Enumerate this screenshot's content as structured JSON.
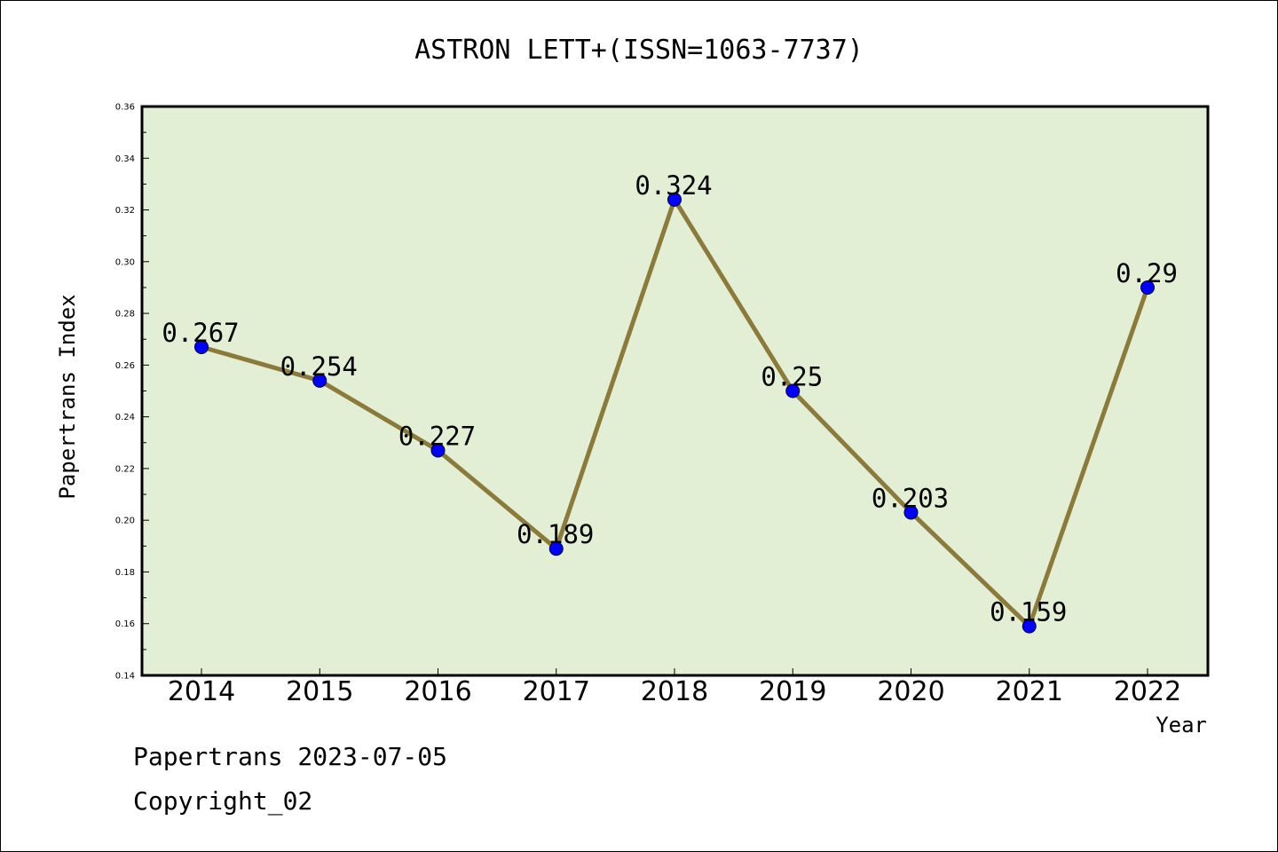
{
  "footer": {
    "line1": "Papertrans 2023-07-05",
    "line2": "Copyright_02"
  },
  "chart_data": {
    "type": "line",
    "title": "ASTRON LETT+(ISSN=1063-7737)",
    "xlabel": "Year",
    "ylabel": "Papertrans Index",
    "categories": [
      "2014",
      "2015",
      "2016",
      "2017",
      "2018",
      "2019",
      "2020",
      "2021",
      "2022"
    ],
    "series": [
      {
        "values": [
          0.267,
          0.254,
          0.227,
          0.189,
          0.324,
          0.25,
          0.203,
          0.159,
          0.29
        ],
        "labels": [
          "0.267",
          "0.254",
          "0.227",
          "0.189",
          "0.324",
          "0.25",
          "0.203",
          "0.159",
          "0.29"
        ]
      }
    ],
    "ylim": [
      0.14,
      0.36
    ],
    "yticks": [
      "0.14",
      "0.16",
      "0.18",
      "0.20",
      "0.22",
      "0.24",
      "0.26",
      "0.28",
      "0.30",
      "0.32",
      "0.34",
      "0.36"
    ],
    "grid": false,
    "colors": {
      "plot_background": "#e2efd5",
      "line": "#8b7a3a",
      "marker": "#0000ff"
    }
  }
}
